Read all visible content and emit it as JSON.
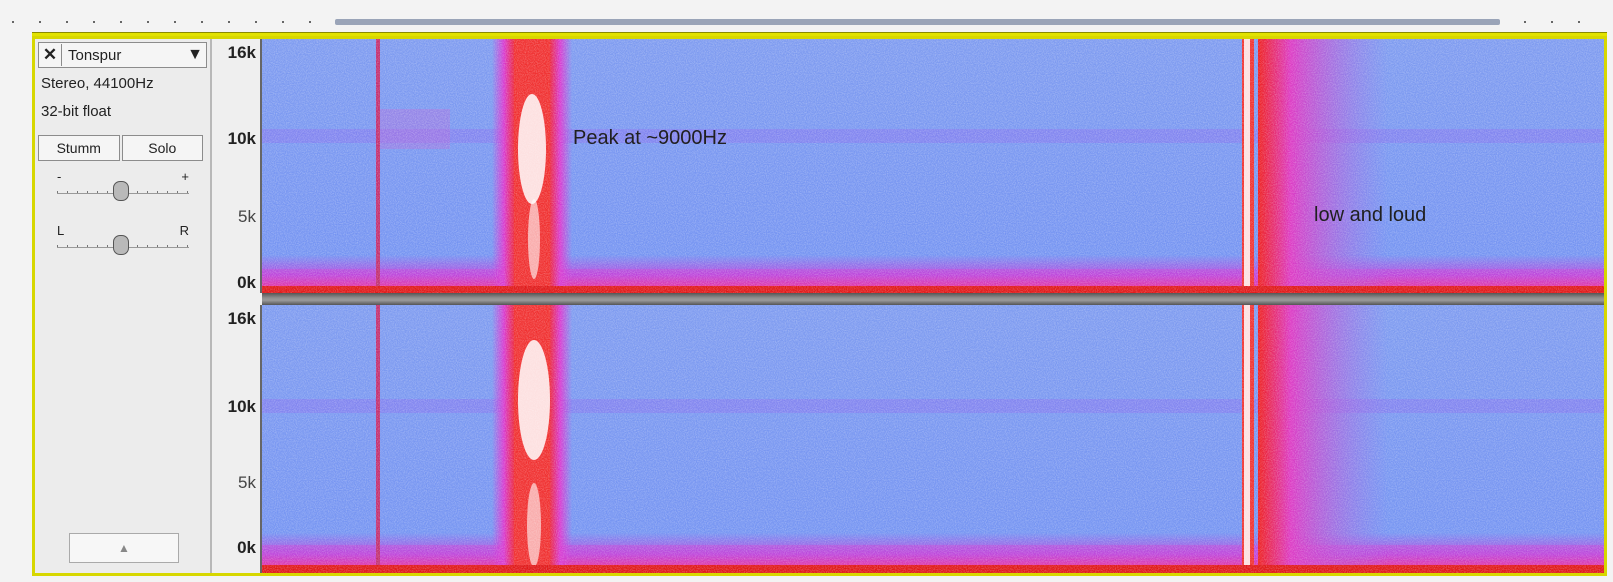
{
  "track": {
    "name": "Tonspur",
    "format": "Stereo, 44100Hz",
    "bit_depth": "32-bit float",
    "mute_label": "Stumm",
    "solo_label": "Solo",
    "gain": {
      "min_label": "-",
      "max_label": "+"
    },
    "pan": {
      "left_label": "L",
      "right_label": "R"
    },
    "collapse_icon": "triangle-up-icon"
  },
  "close_icon": "close-icon",
  "dropdown_icon": "triangle-down-icon",
  "scale": {
    "upper": [
      "16k",
      "10k",
      "5k",
      "0k"
    ],
    "lower": [
      "16k",
      "10k",
      "5k",
      "0k"
    ]
  },
  "annotations": {
    "peak": "Peak at ~9000Hz",
    "low": "low and loud"
  },
  "colors": {
    "accent_yellow": "#d7d700",
    "spectrogram_base": "#6f8ff2",
    "hot": "#ef2020",
    "mid": "#d838d8"
  }
}
